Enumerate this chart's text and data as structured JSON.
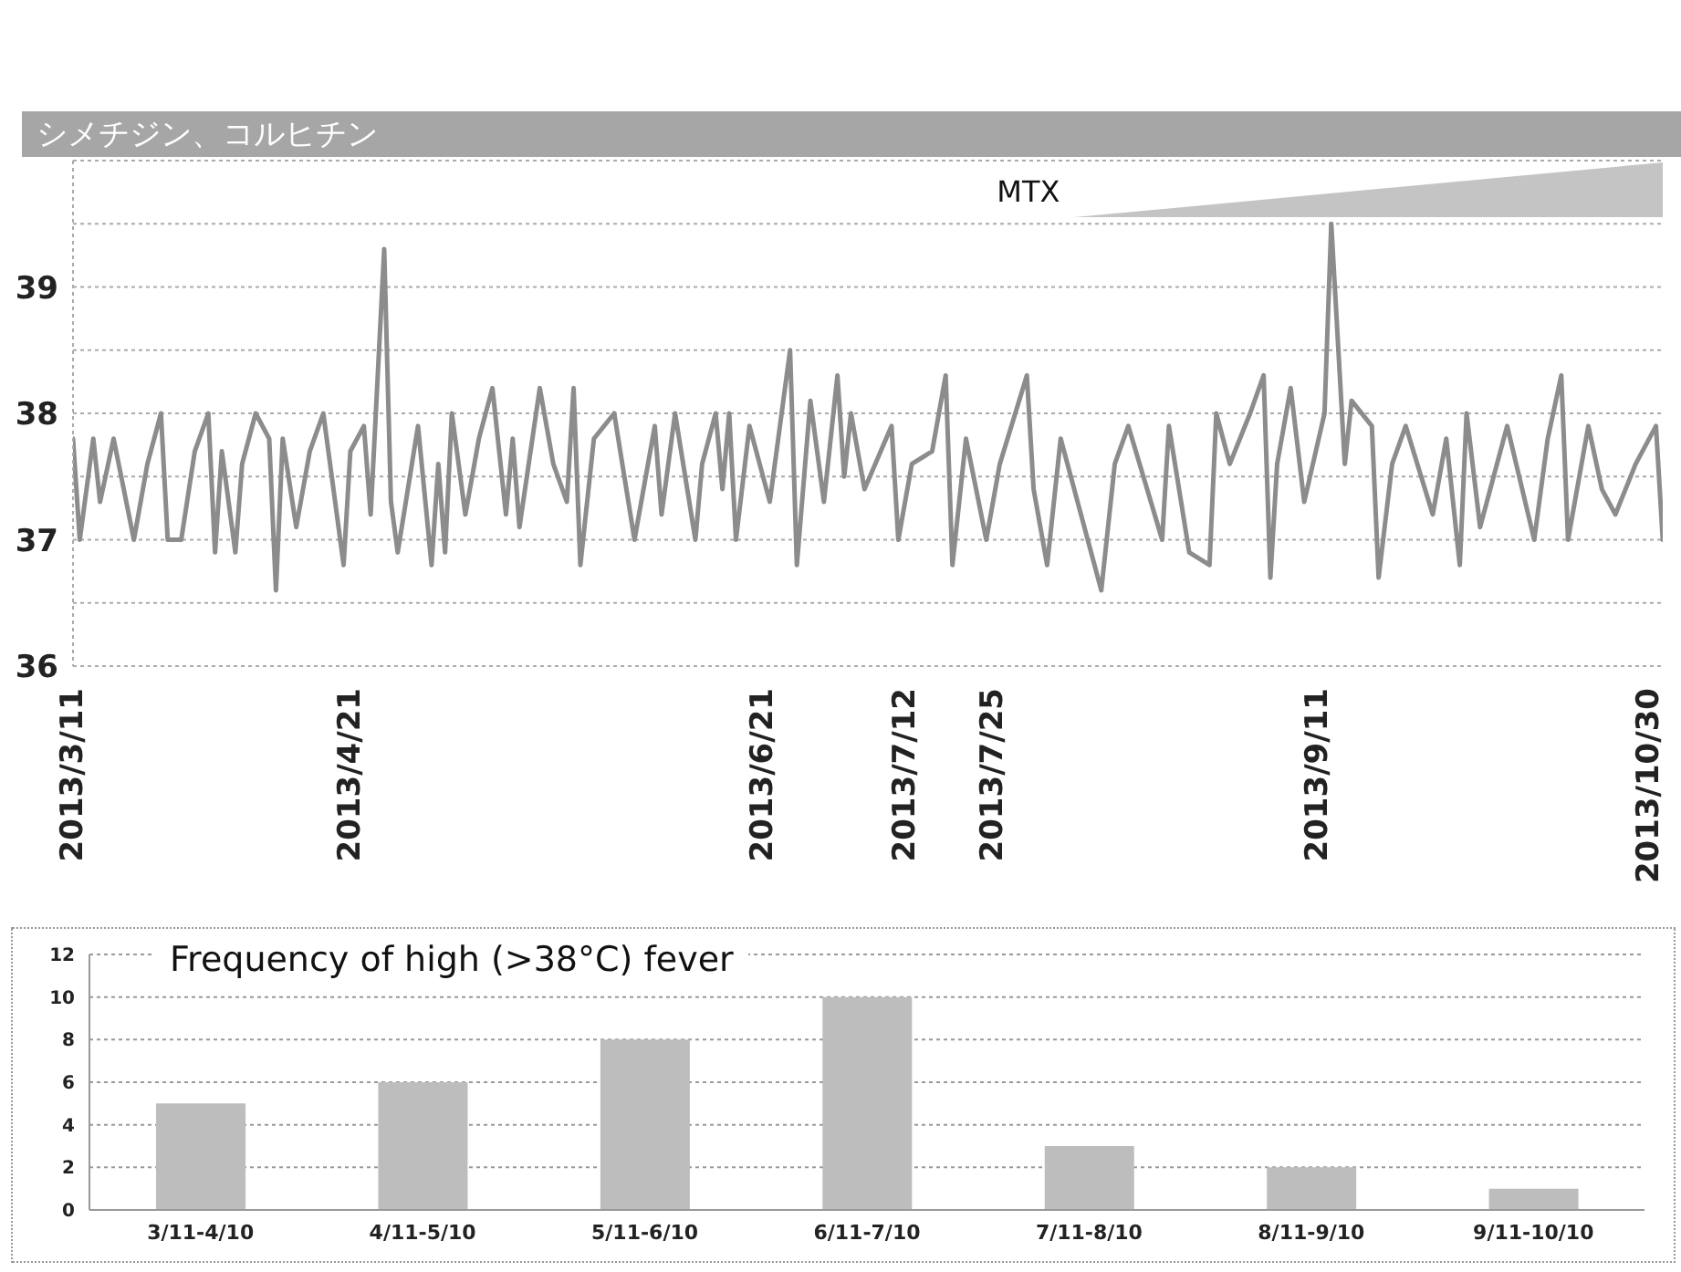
{
  "chart_data": [
    {
      "type": "line",
      "color": "#8c8c8c",
      "x": [
        "2013-03-11",
        "2013-03-12",
        "2013-03-14",
        "2013-03-15",
        "2013-03-17",
        "2013-03-20",
        "2013-03-22",
        "2013-03-24",
        "2013-03-25",
        "2013-03-27",
        "2013-03-29",
        "2013-03-31",
        "2013-04-01",
        "2013-04-02",
        "2013-04-04",
        "2013-04-05",
        "2013-04-07",
        "2013-04-09",
        "2013-04-10",
        "2013-04-11",
        "2013-04-13",
        "2013-04-15",
        "2013-04-17",
        "2013-04-20",
        "2013-04-21",
        "2013-04-23",
        "2013-04-24",
        "2013-04-26",
        "2013-04-27",
        "2013-04-28",
        "2013-05-01",
        "2013-05-03",
        "2013-05-04",
        "2013-05-05",
        "2013-05-06",
        "2013-05-08",
        "2013-05-10",
        "2013-05-12",
        "2013-05-14",
        "2013-05-15",
        "2013-05-16",
        "2013-05-19",
        "2013-05-21",
        "2013-05-23",
        "2013-05-24",
        "2013-05-25",
        "2013-05-27",
        "2013-05-30",
        "2013-06-02",
        "2013-06-05",
        "2013-06-06",
        "2013-06-08",
        "2013-06-11",
        "2013-06-12",
        "2013-06-14",
        "2013-06-15",
        "2013-06-16",
        "2013-06-17",
        "2013-06-19",
        "2013-06-22",
        "2013-06-25",
        "2013-06-26",
        "2013-06-28",
        "2013-06-30",
        "2013-07-02",
        "2013-07-03",
        "2013-07-04",
        "2013-07-06",
        "2013-07-10",
        "2013-07-11",
        "2013-07-13",
        "2013-07-16",
        "2013-07-18",
        "2013-07-19",
        "2013-07-21",
        "2013-07-24",
        "2013-07-26",
        "2013-07-30",
        "2013-07-31",
        "2013-08-02",
        "2013-08-04",
        "2013-08-07",
        "2013-08-10",
        "2013-08-12",
        "2013-08-14",
        "2013-08-19",
        "2013-08-20",
        "2013-08-23",
        "2013-08-26",
        "2013-08-27",
        "2013-08-29",
        "2013-09-01",
        "2013-09-03",
        "2013-09-04",
        "2013-09-05",
        "2013-09-07",
        "2013-09-09",
        "2013-09-12",
        "2013-09-13",
        "2013-09-15",
        "2013-09-16",
        "2013-09-19",
        "2013-09-20",
        "2013-09-22",
        "2013-09-24",
        "2013-09-28",
        "2013-09-30",
        "2013-10-02",
        "2013-10-03",
        "2013-10-05",
        "2013-10-09",
        "2013-10-13",
        "2013-10-15",
        "2013-10-17",
        "2013-10-18",
        "2013-10-21",
        "2013-10-23",
        "2013-10-25",
        "2013-10-28",
        "2013-10-31",
        "2013-11-01"
      ],
      "values": [
        37.8,
        37.0,
        37.8,
        37.3,
        37.8,
        37.0,
        37.6,
        38.0,
        37.0,
        37.0,
        37.7,
        38.0,
        36.9,
        37.7,
        36.9,
        37.6,
        38.0,
        37.8,
        36.6,
        37.8,
        37.1,
        37.7,
        38.0,
        36.8,
        37.7,
        37.9,
        37.2,
        39.3,
        37.3,
        36.9,
        37.9,
        36.8,
        37.6,
        36.9,
        38.0,
        37.2,
        37.8,
        38.2,
        37.2,
        37.8,
        37.1,
        38.2,
        37.6,
        37.3,
        38.2,
        36.8,
        37.8,
        38.0,
        37.0,
        37.9,
        37.2,
        38.0,
        37.0,
        37.6,
        38.0,
        37.4,
        38.0,
        37.0,
        37.9,
        37.3,
        38.5,
        36.8,
        38.1,
        37.3,
        38.3,
        37.5,
        38.0,
        37.4,
        37.9,
        37.0,
        37.6,
        37.7,
        38.3,
        36.8,
        37.8,
        37.0,
        37.6,
        38.3,
        37.4,
        36.8,
        37.8,
        37.2,
        36.6,
        37.6,
        37.9,
        37.0,
        37.9,
        36.9,
        36.8,
        38.0,
        37.6,
        38.0,
        38.3,
        36.7,
        37.6,
        38.2,
        37.3,
        38.0,
        39.5,
        37.6,
        38.1,
        37.9,
        36.7,
        37.6,
        37.9,
        37.2,
        37.8,
        36.8,
        38.0,
        37.1,
        37.9,
        37.0,
        37.8,
        38.3,
        37.0,
        37.9,
        37.4,
        37.2,
        37.6,
        37.9,
        37.0
      ],
      "xlim": [
        "2013-03-11",
        "2013-11-01"
      ],
      "xticks": [
        {
          "value": "2013-03-11",
          "label": "2013/3/11"
        },
        {
          "value": "2013-04-21",
          "label": "2013/4/21"
        },
        {
          "value": "2013-06-21",
          "label": "2013/6/21"
        },
        {
          "value": "2013-07-12",
          "label": "2013/7/12"
        },
        {
          "value": "2013-07-25",
          "label": "2013/7/25"
        },
        {
          "value": "2013-09-11",
          "label": "2013/9/11"
        },
        {
          "value": "2013-10-30",
          "label": "2013/10/30"
        }
      ],
      "ylim": [
        36,
        40
      ],
      "yticks": [
        36,
        {
          "value": 36.5,
          "label": null
        },
        37,
        {
          "value": 37.5,
          "label": null
        },
        38,
        {
          "value": 38.5,
          "label": null
        },
        39,
        {
          "value": 39.5,
          "label": null
        }
      ],
      "grid": "y",
      "annotations": [
        "シメチジン、コルヒチン",
        "MTX"
      ]
    },
    {
      "type": "bar",
      "title": "Frequency of high (>38°C) fever",
      "color": "#bdbdbd",
      "categories": [
        "3/11-4/10",
        "4/11-5/10",
        "5/11-6/10",
        "6/11-7/10",
        "7/11-8/10",
        "8/11-9/10",
        "9/11-10/10"
      ],
      "values": [
        5,
        6,
        8,
        10,
        3,
        2,
        1
      ],
      "ylim": [
        0,
        12
      ],
      "yticks": [
        0,
        2,
        4,
        6,
        8,
        10,
        12
      ],
      "grid": "y"
    }
  ]
}
